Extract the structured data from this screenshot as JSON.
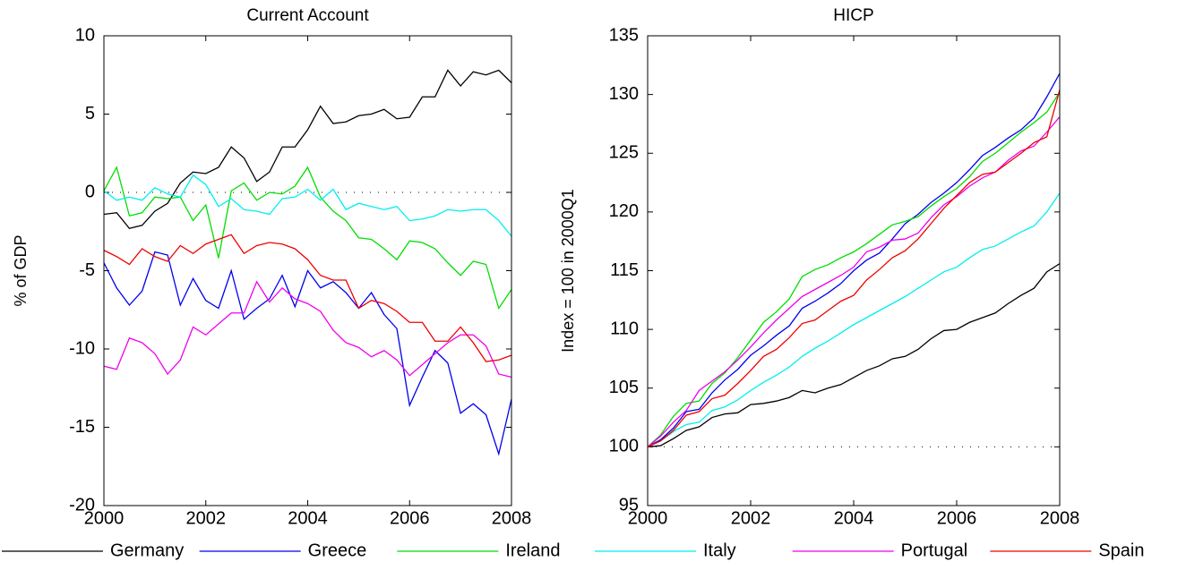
{
  "chart_data": [
    {
      "type": "line",
      "title": "Current Account",
      "y_label": "% of GDP",
      "x": [
        2000,
        2000.25,
        2000.5,
        2000.75,
        2001,
        2001.25,
        2001.5,
        2001.75,
        2002,
        2002.25,
        2002.5,
        2002.75,
        2003,
        2003.25,
        2003.5,
        2003.75,
        2004,
        2004.25,
        2004.5,
        2004.75,
        2005,
        2005.25,
        2005.5,
        2005.75,
        2006,
        2006.25,
        2006.5,
        2006.75,
        2007,
        2007.25,
        2007.5,
        2007.75,
        2008
      ],
      "xlim": [
        2000,
        2008
      ],
      "xticks": [
        2000,
        2002,
        2004,
        2006,
        2008
      ],
      "ylim": [
        -20,
        10
      ],
      "yticks": [
        -20,
        -15,
        -10,
        -5,
        0,
        5,
        10
      ],
      "reference_line": 0,
      "series": [
        {
          "name": "Germany",
          "color": "#000000",
          "values": [
            -1.4,
            -1.3,
            -2.3,
            -2.1,
            -1.2,
            -0.7,
            0.6,
            1.3,
            1.2,
            1.6,
            2.9,
            2.2,
            0.7,
            1.3,
            2.9,
            2.9,
            4.0,
            5.5,
            4.4,
            4.5,
            4.9,
            5.0,
            5.3,
            4.7,
            4.8,
            6.1,
            6.1,
            7.8,
            6.8,
            7.7,
            7.5,
            7.8,
            7.0
          ]
        },
        {
          "name": "Greece",
          "color": "#0000ee",
          "values": [
            -4.5,
            -6.1,
            -7.2,
            -6.3,
            -3.8,
            -4.0,
            -7.2,
            -5.5,
            -6.9,
            -7.4,
            -5.0,
            -8.1,
            -7.4,
            -6.8,
            -5.3,
            -7.3,
            -5.0,
            -6.1,
            -5.7,
            -6.4,
            -7.4,
            -6.4,
            -7.8,
            -8.7,
            -13.6,
            -11.8,
            -10.1,
            -10.9,
            -14.1,
            -13.5,
            -14.2,
            -16.7,
            -13.2
          ]
        },
        {
          "name": "Ireland",
          "color": "#00dd00",
          "values": [
            0.1,
            1.6,
            -1.5,
            -1.3,
            -0.3,
            -0.4,
            -0.3,
            -1.8,
            -0.8,
            -4.2,
            0.1,
            0.6,
            -0.5,
            0,
            -0.1,
            0.4,
            1.6,
            -0.3,
            -1.2,
            -1.8,
            -2.9,
            -3.0,
            -3.6,
            -4.3,
            -3.1,
            -3.2,
            -3.6,
            -4.5,
            -5.3,
            -4.4,
            -4.6,
            -7.4,
            -6.2
          ]
        },
        {
          "name": "Italy",
          "color": "#00eeee",
          "values": [
            0.1,
            -0.5,
            -0.3,
            -0.5,
            0.3,
            -0.1,
            -0.3,
            1.1,
            0.5,
            -0.9,
            -0.4,
            -1.1,
            -1.2,
            -1.4,
            -0.4,
            -0.3,
            0.2,
            -0.5,
            0.2,
            -1.1,
            -0.7,
            -0.9,
            -1.1,
            -0.9,
            -1.8,
            -1.7,
            -1.5,
            -1.1,
            -1.2,
            -1.1,
            -1.1,
            -1.8,
            -2.8
          ]
        },
        {
          "name": "Portugal",
          "color": "#ee00ee",
          "values": [
            -11.1,
            -11.3,
            -9.3,
            -9.6,
            -10.3,
            -11.6,
            -10.7,
            -8.6,
            -9.1,
            -8.4,
            -7.7,
            -7.7,
            -5.7,
            -7.0,
            -6.1,
            -6.8,
            -7.1,
            -7.6,
            -8.8,
            -9.6,
            -9.9,
            -10.5,
            -10.1,
            -10.7,
            -11.7,
            -11.0,
            -10.3,
            -9.6,
            -9.1,
            -9.1,
            -9.8,
            -11.6,
            -11.8
          ]
        },
        {
          "name": "Spain",
          "color": "#ee0000",
          "values": [
            -3.7,
            -4.1,
            -4.6,
            -3.6,
            -4.1,
            -4.4,
            -3.4,
            -3.9,
            -3.3,
            -3.0,
            -2.7,
            -3.9,
            -3.4,
            -3.2,
            -3.3,
            -3.6,
            -4.3,
            -5.3,
            -5.6,
            -5.6,
            -7.4,
            -6.9,
            -7.1,
            -7.6,
            -8.3,
            -8.3,
            -9.5,
            -9.5,
            -8.6,
            -9.6,
            -10.8,
            -10.7,
            -10.4
          ]
        }
      ]
    },
    {
      "type": "line",
      "title": "HICP",
      "y_label": "Index = 100 in 2000Q1",
      "x": [
        2000,
        2000.25,
        2000.5,
        2000.75,
        2001,
        2001.25,
        2001.5,
        2001.75,
        2002,
        2002.25,
        2002.5,
        2002.75,
        2003,
        2003.25,
        2003.5,
        2003.75,
        2004,
        2004.25,
        2004.5,
        2004.75,
        2005,
        2005.25,
        2005.5,
        2005.75,
        2006,
        2006.25,
        2006.5,
        2006.75,
        2007,
        2007.25,
        2007.5,
        2007.75,
        2008
      ],
      "xlim": [
        2000,
        2008
      ],
      "xticks": [
        2000,
        2002,
        2004,
        2006,
        2008
      ],
      "ylim": [
        95,
        135
      ],
      "yticks": [
        95,
        100,
        105,
        110,
        115,
        120,
        125,
        130,
        135
      ],
      "reference_line": 100,
      "series": [
        {
          "color": "#000000",
          "values": [
            100,
            100.1,
            100.7,
            101.4,
            101.7,
            102.5,
            102.8,
            102.9,
            103.6,
            103.7,
            103.9,
            104.2,
            104.8,
            104.6,
            105.0,
            105.3,
            105.9,
            106.5,
            106.9,
            107.5,
            107.7,
            108.3,
            109.2,
            109.9,
            110.0,
            110.6,
            111.0,
            111.4,
            112.2,
            112.9,
            113.5,
            114.9,
            115.6
          ]
        },
        {
          "color": "#0000ee",
          "values": [
            100,
            100.6,
            101.6,
            103.0,
            103.2,
            104.6,
            105.7,
            106.6,
            107.8,
            108.6,
            109.5,
            110.3,
            111.8,
            112.4,
            113.1,
            113.9,
            115.0,
            115.9,
            116.5,
            117.7,
            119.0,
            119.8,
            120.8,
            121.6,
            122.5,
            123.6,
            124.8,
            125.5,
            126.3,
            127.0,
            128.0,
            129.8,
            131.8
          ]
        },
        {
          "color": "#00dd00",
          "values": [
            100,
            101.0,
            102.6,
            103.7,
            103.9,
            105.4,
            106.3,
            107.6,
            109.1,
            110.6,
            111.5,
            112.6,
            114.5,
            115.1,
            115.5,
            116.1,
            116.6,
            117.3,
            118.1,
            118.9,
            119.2,
            119.6,
            120.5,
            121.3,
            122.0,
            123.0,
            124.3,
            125.0,
            125.9,
            126.8,
            127.6,
            128.5,
            130.2
          ]
        },
        {
          "color": "#00eeee",
          "values": [
            100,
            100.5,
            101.3,
            101.9,
            102.1,
            103.1,
            103.4,
            104.0,
            104.8,
            105.5,
            106.1,
            106.8,
            107.7,
            108.4,
            109.0,
            109.7,
            110.4,
            111.0,
            111.6,
            112.2,
            112.8,
            113.5,
            114.2,
            114.9,
            115.3,
            116.1,
            116.8,
            117.1,
            117.7,
            118.3,
            118.8,
            120.0,
            121.6
          ]
        },
        {
          "color": "#ee00ee",
          "values": [
            100,
            100.9,
            102.1,
            103.1,
            104.8,
            105.6,
            106.4,
            107.4,
            108.5,
            109.7,
            110.8,
            111.8,
            112.8,
            113.4,
            114.0,
            114.6,
            115.3,
            116.6,
            117.0,
            117.6,
            117.7,
            118.2,
            119.5,
            120.6,
            121.3,
            122.2,
            122.9,
            123.4,
            124.4,
            125.2,
            125.6,
            126.8,
            128.1
          ]
        },
        {
          "color": "#ee0000",
          "values": [
            100,
            100.5,
            101.4,
            102.7,
            103.0,
            104.1,
            104.4,
            105.4,
            106.5,
            107.7,
            108.3,
            109.3,
            110.5,
            110.8,
            111.6,
            112.4,
            112.9,
            114.2,
            115.1,
            116.1,
            116.7,
            117.7,
            119.0,
            120.3,
            121.4,
            122.5,
            123.2,
            123.4,
            124.2,
            125.0,
            125.9,
            126.4,
            130.4
          ]
        }
      ]
    }
  ]
}
